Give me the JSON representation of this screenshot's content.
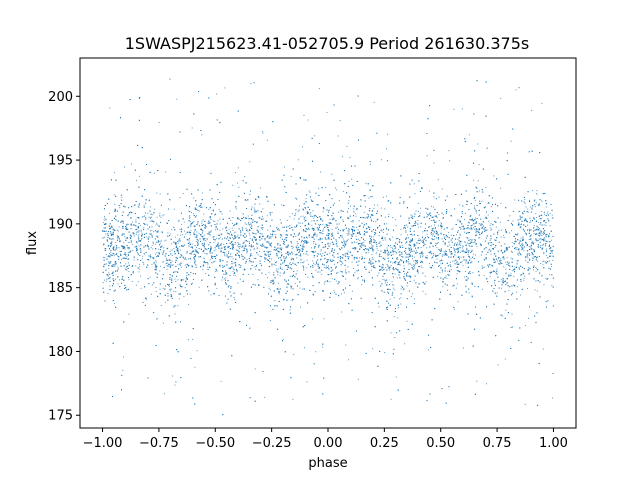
{
  "chart_data": {
    "type": "scatter",
    "title": "1SWASPJ215623.41-052705.9 Period 261630.375s",
    "xlabel": "phase",
    "ylabel": "flux",
    "xlim": [
      -1.1,
      1.1
    ],
    "ylim": [
      174,
      203
    ],
    "xticks": [
      -1.0,
      -0.75,
      -0.5,
      -0.25,
      0.0,
      0.25,
      0.5,
      0.75,
      1.0
    ],
    "xtick_labels": [
      "−1.00",
      "−0.75",
      "−0.50",
      "−0.25",
      "0.00",
      "0.25",
      "0.50",
      "0.75",
      "1.00"
    ],
    "yticks": [
      175,
      180,
      185,
      190,
      195,
      200
    ],
    "ytick_labels": [
      "175",
      "180",
      "185",
      "190",
      "195",
      "200"
    ],
    "grid": false,
    "point_color": "#1f77b4",
    "series": [
      {
        "x_range": [
          -1.0,
          1.0
        ],
        "baseline_flux": 188.0,
        "core_spread": 1.8,
        "flux_min": 175,
        "flux_max": 201.5,
        "modulation": [
          {
            "phase": -1.0,
            "flux": 188.0
          },
          {
            "phase": -0.82,
            "flux": 189.0
          },
          {
            "phase": -0.7,
            "flux": 187.0
          },
          {
            "phase": -0.55,
            "flux": 189.0
          },
          {
            "phase": -0.45,
            "flux": 187.5
          },
          {
            "phase": -0.33,
            "flux": 189.5
          },
          {
            "phase": -0.22,
            "flux": 187.0
          },
          {
            "phase": -0.1,
            "flux": 189.0
          },
          {
            "phase": 0.0,
            "flux": 188.0
          },
          {
            "phase": 0.18,
            "flux": 189.0
          },
          {
            "phase": 0.3,
            "flux": 187.0
          },
          {
            "phase": 0.45,
            "flux": 189.0
          },
          {
            "phase": 0.55,
            "flux": 187.5
          },
          {
            "phase": 0.67,
            "flux": 189.5
          },
          {
            "phase": 0.78,
            "flux": 187.0
          },
          {
            "phase": 0.9,
            "flux": 189.0
          },
          {
            "phase": 1.0,
            "flux": 188.0
          }
        ]
      }
    ]
  }
}
